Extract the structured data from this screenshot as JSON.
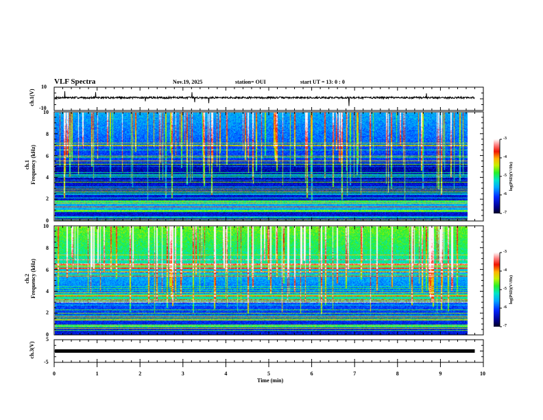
{
  "header": {
    "title": "VLF Spectra",
    "date": "Nov.19, 2025",
    "station": "station= OUI",
    "start_ut": "start  UT  =   13: 0  : 0"
  },
  "chart_data": [
    {
      "type": "line",
      "name": "ch1-waveform",
      "ylabel": "ch.1(V)",
      "ylim": [
        -10,
        10
      ],
      "yticks": [
        "10",
        "-10"
      ],
      "baseline_v": 1,
      "xlim": [
        0,
        10
      ],
      "data_end_min": 9.8
    },
    {
      "type": "heatmap",
      "name": "ch1-spectrogram",
      "ylabel_top": "ch.1",
      "ylabel": "Frequency (kHz)",
      "ylim": [
        0,
        10
      ],
      "yticks": [
        "0",
        "2",
        "4",
        "6",
        "8",
        "10"
      ],
      "xlim": [
        0,
        10
      ],
      "colorbar": {
        "label": "log(PSD)(V²/Hz)",
        "range": [
          -7,
          -3
        ],
        "ticks": [
          "-3",
          "-4",
          "-5",
          "-6",
          "-7"
        ]
      },
      "seed": 11
    },
    {
      "type": "heatmap",
      "name": "ch2-spectrogram",
      "ylabel_top": "ch.2",
      "ylabel": "Frequency (kHz)",
      "ylim": [
        0,
        10
      ],
      "yticks": [
        "0",
        "2",
        "4",
        "6",
        "8",
        "10"
      ],
      "xlim": [
        0,
        10
      ],
      "colorbar": {
        "label": "log(PSD)(V²/Hz)",
        "range": [
          -7,
          -3
        ],
        "ticks": [
          "-3",
          "-4",
          "-5",
          "-6",
          "-7"
        ]
      },
      "seed": 29
    },
    {
      "type": "line",
      "name": "ch3-waveform",
      "ylabel": "ch.3(V)",
      "ylim": [
        -5,
        5
      ],
      "yticks": [
        "5",
        "-5"
      ],
      "baseline_v": 0,
      "xlim": [
        0,
        10
      ],
      "data_end_min": 9.8
    }
  ],
  "xaxis": {
    "label": "Time (min)",
    "ticks": [
      "0",
      "1",
      "2",
      "3",
      "4",
      "5",
      "6",
      "7",
      "8",
      "9",
      "10"
    ]
  },
  "colors": {
    "frame": "#000000",
    "trace": "#000000"
  }
}
